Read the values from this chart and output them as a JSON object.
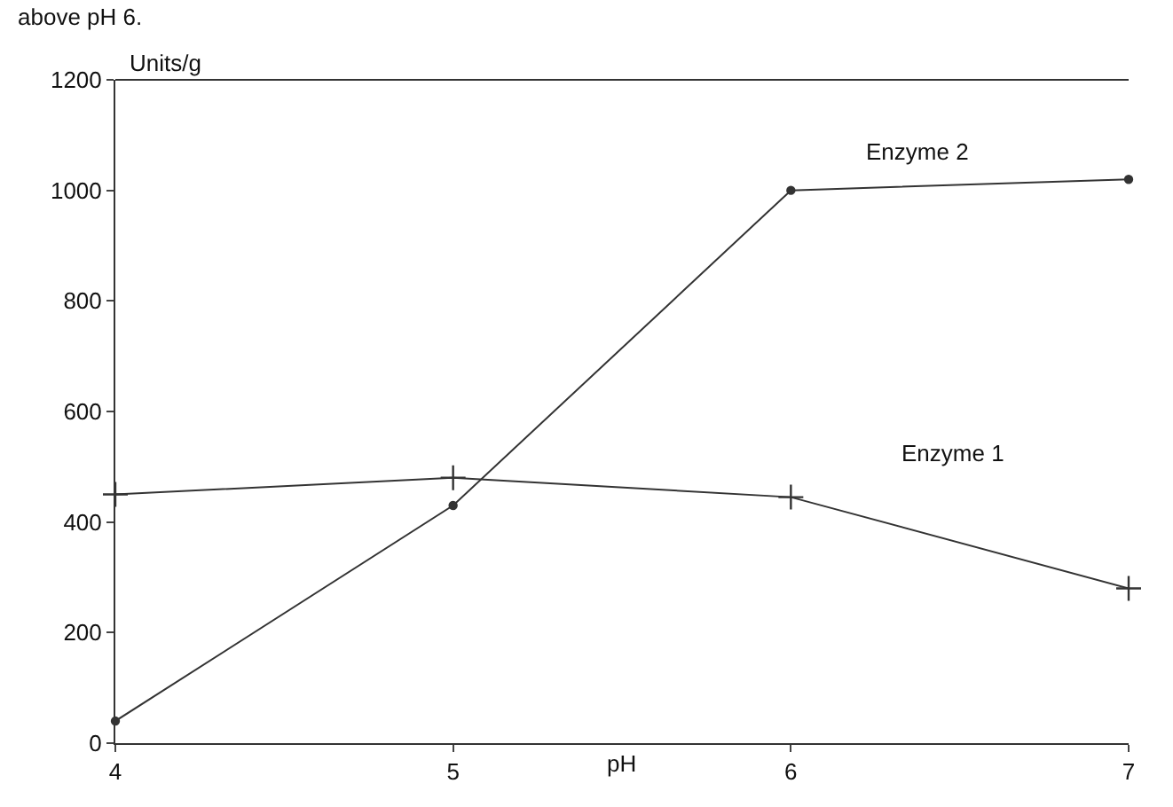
{
  "chart_data": {
    "type": "line",
    "xlabel": "pH",
    "ylabel": "Units/g",
    "annotations": [
      "above pH 6."
    ],
    "x": [
      4,
      5,
      6,
      7
    ],
    "series": [
      {
        "name": "Enzyme 2",
        "color": "#333333",
        "marker": "circle",
        "values": [
          40,
          430,
          1000,
          1020
        ]
      },
      {
        "name": "Enzyme 1",
        "color": "#333333",
        "marker": "cross",
        "values": [
          450,
          480,
          445,
          280
        ]
      }
    ],
    "xlim": [
      4,
      7
    ],
    "xticks": [
      4,
      5,
      6,
      7
    ],
    "ylim": [
      0,
      1200
    ],
    "yticks": [
      0,
      200,
      400,
      600,
      800,
      1000,
      1200
    ],
    "legend": false,
    "line_style": "solid"
  }
}
